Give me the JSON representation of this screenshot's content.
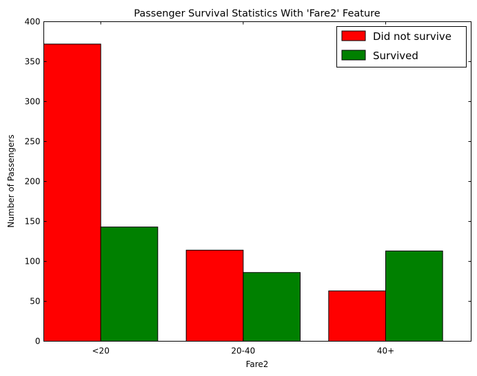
{
  "chart_data": {
    "type": "bar",
    "title": "Passenger Survival Statistics With 'Fare2' Feature",
    "xlabel": "Fare2",
    "ylabel": "Number of Passengers",
    "categories": [
      "<20",
      "20-40",
      "40+"
    ],
    "series": [
      {
        "name": "Did not survive",
        "values": [
          372,
          114,
          63
        ],
        "color": "#ff0000"
      },
      {
        "name": "Survived",
        "values": [
          143,
          86,
          113
        ],
        "color": "#008000"
      }
    ],
    "ylim": [
      0,
      400
    ],
    "yticks": [
      0,
      50,
      100,
      150,
      200,
      250,
      300,
      350,
      400
    ],
    "grid": false,
    "legend": "top-right"
  }
}
